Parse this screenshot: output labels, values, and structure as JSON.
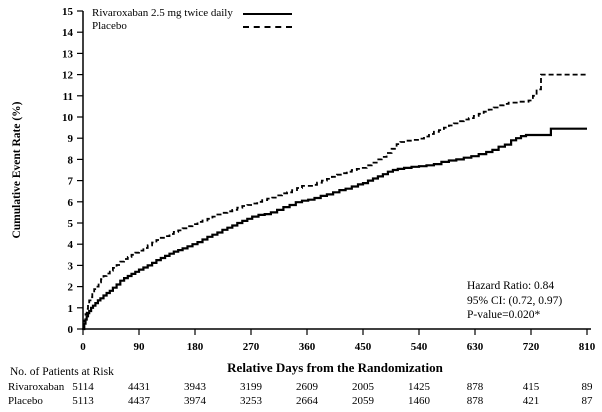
{
  "chart_data": {
    "type": "line",
    "step": true,
    "xlabel": "Relative Days from the Randomization",
    "ylabel": "Cumulative Event Rate (%)",
    "xlim": [
      0,
      810
    ],
    "ylim": [
      0,
      15
    ],
    "x_ticks": [
      0,
      90,
      180,
      270,
      360,
      450,
      540,
      630,
      720,
      810
    ],
    "y_ticks": [
      0,
      1,
      2,
      3,
      4,
      5,
      6,
      7,
      8,
      9,
      10,
      11,
      12,
      13,
      14,
      15
    ],
    "grid": false,
    "legend_position": "top-left-inside",
    "annotations": [
      "Hazard Ratio: 0.84",
      "95% CI:  (0.72, 0.97)",
      "P-value=0.020*"
    ],
    "line_color": "#000000",
    "series": [
      {
        "name": "Rivaroxaban 2.5 mg twice daily",
        "line": "solid",
        "points": [
          [
            0,
            0
          ],
          [
            2,
            0.25
          ],
          [
            4,
            0.45
          ],
          [
            6,
            0.6
          ],
          [
            8,
            0.75
          ],
          [
            10,
            0.85
          ],
          [
            13,
            1.0
          ],
          [
            16,
            1.1
          ],
          [
            20,
            1.22
          ],
          [
            24,
            1.35
          ],
          [
            28,
            1.45
          ],
          [
            33,
            1.58
          ],
          [
            38,
            1.7
          ],
          [
            43,
            1.8
          ],
          [
            48,
            1.95
          ],
          [
            54,
            2.1
          ],
          [
            60,
            2.28
          ],
          [
            66,
            2.4
          ],
          [
            72,
            2.5
          ],
          [
            78,
            2.6
          ],
          [
            84,
            2.7
          ],
          [
            90,
            2.8
          ],
          [
            97,
            2.9
          ],
          [
            104,
            3.0
          ],
          [
            111,
            3.12
          ],
          [
            118,
            3.25
          ],
          [
            125,
            3.35
          ],
          [
            132,
            3.45
          ],
          [
            139,
            3.55
          ],
          [
            146,
            3.65
          ],
          [
            153,
            3.72
          ],
          [
            160,
            3.8
          ],
          [
            168,
            3.9
          ],
          [
            176,
            4.0
          ],
          [
            184,
            4.1
          ],
          [
            192,
            4.22
          ],
          [
            200,
            4.35
          ],
          [
            208,
            4.45
          ],
          [
            216,
            4.55
          ],
          [
            224,
            4.68
          ],
          [
            232,
            4.78
          ],
          [
            240,
            4.88
          ],
          [
            248,
            5.0
          ],
          [
            256,
            5.1
          ],
          [
            264,
            5.2
          ],
          [
            272,
            5.3
          ],
          [
            282,
            5.38
          ],
          [
            292,
            5.42
          ],
          [
            302,
            5.5
          ],
          [
            312,
            5.62
          ],
          [
            322,
            5.75
          ],
          [
            332,
            5.85
          ],
          [
            342,
            5.98
          ],
          [
            352,
            6.05
          ],
          [
            362,
            6.1
          ],
          [
            372,
            6.18
          ],
          [
            382,
            6.28
          ],
          [
            392,
            6.35
          ],
          [
            402,
            6.45
          ],
          [
            412,
            6.55
          ],
          [
            422,
            6.62
          ],
          [
            432,
            6.72
          ],
          [
            442,
            6.82
          ],
          [
            450,
            6.88
          ],
          [
            458,
            7.0
          ],
          [
            466,
            7.1
          ],
          [
            474,
            7.2
          ],
          [
            482,
            7.3
          ],
          [
            490,
            7.42
          ],
          [
            498,
            7.5
          ],
          [
            506,
            7.55
          ],
          [
            516,
            7.6
          ],
          [
            528,
            7.65
          ],
          [
            540,
            7.68
          ],
          [
            552,
            7.72
          ],
          [
            564,
            7.78
          ],
          [
            576,
            7.88
          ],
          [
            588,
            7.95
          ],
          [
            600,
            8.0
          ],
          [
            612,
            8.08
          ],
          [
            624,
            8.15
          ],
          [
            636,
            8.25
          ],
          [
            648,
            8.35
          ],
          [
            658,
            8.45
          ],
          [
            668,
            8.6
          ],
          [
            678,
            8.7
          ],
          [
            688,
            8.9
          ],
          [
            696,
            9.0
          ],
          [
            704,
            9.1
          ],
          [
            712,
            9.15
          ],
          [
            752,
            9.45
          ],
          [
            810,
            9.45
          ]
        ]
      },
      {
        "name": "Placebo",
        "line": "dashed",
        "points": [
          [
            0,
            0
          ],
          [
            2,
            0.4
          ],
          [
            4,
            0.7
          ],
          [
            6,
            0.95
          ],
          [
            8,
            1.15
          ],
          [
            10,
            1.35
          ],
          [
            12,
            1.5
          ],
          [
            15,
            1.7
          ],
          [
            18,
            1.88
          ],
          [
            21,
            2.0
          ],
          [
            25,
            2.2
          ],
          [
            29,
            2.35
          ],
          [
            33,
            2.5
          ],
          [
            38,
            2.62
          ],
          [
            43,
            2.75
          ],
          [
            48,
            2.88
          ],
          [
            54,
            3.02
          ],
          [
            60,
            3.18
          ],
          [
            66,
            3.3
          ],
          [
            72,
            3.4
          ],
          [
            78,
            3.5
          ],
          [
            84,
            3.6
          ],
          [
            90,
            3.7
          ],
          [
            97,
            3.82
          ],
          [
            104,
            3.95
          ],
          [
            111,
            4.08
          ],
          [
            118,
            4.2
          ],
          [
            125,
            4.3
          ],
          [
            132,
            4.38
          ],
          [
            139,
            4.48
          ],
          [
            146,
            4.58
          ],
          [
            153,
            4.65
          ],
          [
            160,
            4.75
          ],
          [
            168,
            4.85
          ],
          [
            176,
            4.95
          ],
          [
            184,
            5.05
          ],
          [
            192,
            5.12
          ],
          [
            200,
            5.2
          ],
          [
            208,
            5.3
          ],
          [
            216,
            5.4
          ],
          [
            224,
            5.48
          ],
          [
            232,
            5.55
          ],
          [
            240,
            5.62
          ],
          [
            248,
            5.72
          ],
          [
            256,
            5.8
          ],
          [
            264,
            5.85
          ],
          [
            272,
            5.92
          ],
          [
            280,
            6.0
          ],
          [
            288,
            6.08
          ],
          [
            296,
            6.15
          ],
          [
            304,
            6.2
          ],
          [
            312,
            6.3
          ],
          [
            320,
            6.4
          ],
          [
            328,
            6.45
          ],
          [
            336,
            6.55
          ],
          [
            344,
            6.65
          ],
          [
            352,
            6.75
          ],
          [
            368,
            6.8
          ],
          [
            376,
            6.9
          ],
          [
            384,
            7.0
          ],
          [
            392,
            7.08
          ],
          [
            400,
            7.18
          ],
          [
            408,
            7.28
          ],
          [
            416,
            7.35
          ],
          [
            424,
            7.42
          ],
          [
            432,
            7.5
          ],
          [
            440,
            7.55
          ],
          [
            448,
            7.6
          ],
          [
            456,
            7.72
          ],
          [
            464,
            7.85
          ],
          [
            472,
            8.0
          ],
          [
            480,
            8.12
          ],
          [
            488,
            8.3
          ],
          [
            496,
            8.5
          ],
          [
            504,
            8.72
          ],
          [
            510,
            8.82
          ],
          [
            518,
            8.88
          ],
          [
            530,
            8.92
          ],
          [
            540,
            8.98
          ],
          [
            548,
            9.08
          ],
          [
            556,
            9.2
          ],
          [
            564,
            9.3
          ],
          [
            572,
            9.38
          ],
          [
            580,
            9.5
          ],
          [
            588,
            9.6
          ],
          [
            596,
            9.7
          ],
          [
            604,
            9.8
          ],
          [
            612,
            9.88
          ],
          [
            620,
            9.95
          ],
          [
            628,
            10.05
          ],
          [
            636,
            10.15
          ],
          [
            644,
            10.25
          ],
          [
            652,
            10.35
          ],
          [
            660,
            10.45
          ],
          [
            668,
            10.55
          ],
          [
            676,
            10.62
          ],
          [
            684,
            10.68
          ],
          [
            700,
            10.72
          ],
          [
            716,
            10.78
          ],
          [
            723,
            11.0
          ],
          [
            729,
            11.3
          ],
          [
            736,
            12.0
          ],
          [
            810,
            12.0
          ]
        ]
      }
    ]
  },
  "risk_table": {
    "title": "No. of Patients at Risk",
    "columns": [
      0,
      90,
      180,
      270,
      360,
      450,
      540,
      630,
      720,
      810
    ],
    "rows": [
      {
        "label": "Rivaroxaban",
        "values": [
          "5114",
          "4431",
          "3943",
          "3199",
          "2609",
          "2005",
          "1425",
          "878",
          "415",
          "89"
        ]
      },
      {
        "label": "Placebo",
        "values": [
          "5113",
          "4437",
          "3974",
          "3253",
          "2664",
          "2059",
          "1460",
          "878",
          "421",
          "87"
        ]
      }
    ]
  }
}
